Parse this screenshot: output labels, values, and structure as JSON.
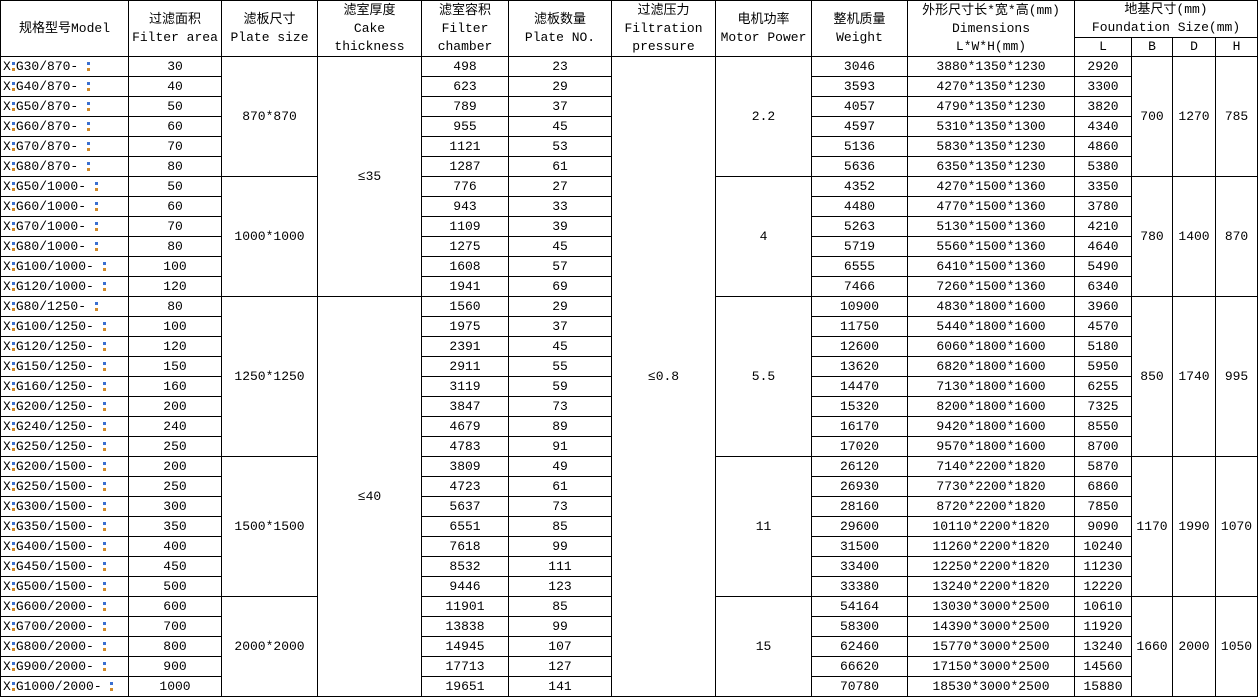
{
  "headers": {
    "model": "规格型号Model",
    "area_cn": "过滤面积",
    "area_en": "Filter area",
    "plate_cn": "滤板尺寸",
    "plate_en": "Plate size",
    "cake_cn": "滤室厚度",
    "cake_en1": "Cake",
    "cake_en2": "thickness",
    "chamber_cn": "滤室容积",
    "chamber_en1": "Filter",
    "chamber_en2": "chamber",
    "plateno_cn": "滤板数量",
    "plateno_en": "Plate NO.",
    "pressure_cn": "过滤压力",
    "pressure_en1": "Filtration",
    "pressure_en2": "pressure",
    "motor_cn": "电机功率",
    "motor_en": "Motor Power",
    "weight_cn": "整机质量",
    "weight_en": "Weight",
    "dims_cn": "外形尺寸长*宽*高(mm)",
    "dims_en1": "Dimensions",
    "dims_en2": "L*W*H(mm)",
    "found_cn": "地基尺寸(mm)",
    "found_en": "Foundation Size(mm)",
    "L": "L",
    "B": "B",
    "D": "D",
    "H": "H"
  },
  "groups": [
    {
      "plate": "870*870",
      "motor": "2.2",
      "B": "700",
      "D": "1270",
      "H": "785",
      "rows": [
        [
          "X G30/870-",
          "30",
          "498",
          "23",
          "3046",
          "3880*1350*1230",
          "2920"
        ],
        [
          "X G40/870-",
          "40",
          "623",
          "29",
          "3593",
          "4270*1350*1230",
          "3300"
        ],
        [
          "X G50/870-",
          "50",
          "789",
          "37",
          "4057",
          "4790*1350*1230",
          "3820"
        ],
        [
          "X G60/870-",
          "60",
          "955",
          "45",
          "4597",
          "5310*1350*1300",
          "4340"
        ],
        [
          "X G70/870-",
          "70",
          "1121",
          "53",
          "5136",
          "5830*1350*1230",
          "4860"
        ],
        [
          "X G80/870-",
          "80",
          "1287",
          "61",
          "5636",
          "6350*1350*1230",
          "5380"
        ]
      ]
    },
    {
      "plate": "1000*1000",
      "motor": "4",
      "B": "780",
      "D": "1400",
      "H": "870",
      "rows": [
        [
          "X G50/1000-",
          "50",
          "776",
          "27",
          "4352",
          "4270*1500*1360",
          "3350"
        ],
        [
          "X G60/1000-",
          "60",
          "943",
          "33",
          "4480",
          "4770*1500*1360",
          "3780"
        ],
        [
          "X G70/1000-",
          "70",
          "1109",
          "39",
          "5263",
          "5130*1500*1360",
          "4210"
        ],
        [
          "X G80/1000-",
          "80",
          "1275",
          "45",
          "5719",
          "5560*1500*1360",
          "4640"
        ],
        [
          "X G100/1000-",
          "100",
          "1608",
          "57",
          "6555",
          "6410*1500*1360",
          "5490"
        ],
        [
          "X G120/1000-",
          "120",
          "1941",
          "69",
          "7466",
          "7260*1500*1360",
          "6340"
        ]
      ]
    },
    {
      "plate": "1250*1250",
      "motor": "5.5",
      "B": "850",
      "D": "1740",
      "H": "995",
      "rows": [
        [
          "X G80/1250-",
          "80",
          "1560",
          "29",
          "10900",
          "4830*1800*1600",
          "3960"
        ],
        [
          "X G100/1250-",
          "100",
          "1975",
          "37",
          "11750",
          "5440*1800*1600",
          "4570"
        ],
        [
          "X G120/1250-",
          "120",
          "2391",
          "45",
          "12600",
          "6060*1800*1600",
          "5180"
        ],
        [
          "X G150/1250-",
          "150",
          "2911",
          "55",
          "13620",
          "6820*1800*1600",
          "5950"
        ],
        [
          "X G160/1250-",
          "160",
          "3119",
          "59",
          "14470",
          "7130*1800*1600",
          "6255"
        ],
        [
          "X G200/1250-",
          "200",
          "3847",
          "73",
          "15320",
          "8200*1800*1600",
          "7325"
        ],
        [
          "X G240/1250-",
          "240",
          "4679",
          "89",
          "16170",
          "9420*1800*1600",
          "8550"
        ],
        [
          "X G250/1250-",
          "250",
          "4783",
          "91",
          "17020",
          "9570*1800*1600",
          "8700"
        ]
      ]
    },
    {
      "plate": "1500*1500",
      "motor": "11",
      "B": "1170",
      "D": "1990",
      "H": "1070",
      "rows": [
        [
          "X G200/1500-",
          "200",
          "3809",
          "49",
          "26120",
          "7140*2200*1820",
          "5870"
        ],
        [
          "X G250/1500-",
          "250",
          "4723",
          "61",
          "26930",
          "7730*2200*1820",
          "6860"
        ],
        [
          "X G300/1500-",
          "300",
          "5637",
          "73",
          "28160",
          "8720*2200*1820",
          "7850"
        ],
        [
          "X G350/1500-",
          "350",
          "6551",
          "85",
          "29600",
          "10110*2200*1820",
          "9090"
        ],
        [
          "X G400/1500-",
          "400",
          "7618",
          "99",
          "31500",
          "11260*2200*1820",
          "10240"
        ],
        [
          "X G450/1500-",
          "450",
          "8532",
          "111",
          "33400",
          "12250*2200*1820",
          "11230"
        ],
        [
          "X G500/1500-",
          "500",
          "9446",
          "123",
          "33380",
          "13240*2200*1820",
          "12220"
        ]
      ]
    },
    {
      "plate": "2000*2000",
      "motor": "15",
      "B": "1660",
      "D": "2000",
      "H": "1050",
      "rows": [
        [
          "X G600/2000-",
          "600",
          "11901",
          "85",
          "54164",
          "13030*3000*2500",
          "10610"
        ],
        [
          "X G700/2000-",
          "700",
          "13838",
          "99",
          "58300",
          "14390*3000*2500",
          "11920"
        ],
        [
          "X G800/2000-",
          "800",
          "14945",
          "107",
          "62460",
          "15770*3000*2500",
          "13240"
        ],
        [
          "X G900/2000-",
          "900",
          "17713",
          "127",
          "66620",
          "17150*3000*2500",
          "14560"
        ],
        [
          "X G1000/2000-",
          "1000",
          "19651",
          "141",
          "70780",
          "18530*3000*2500",
          "15880"
        ]
      ]
    }
  ],
  "cake": [
    {
      "value": "≤35",
      "span": 12
    },
    {
      "value": "≤40",
      "span": 20
    }
  ],
  "pressure": "≤0.8"
}
